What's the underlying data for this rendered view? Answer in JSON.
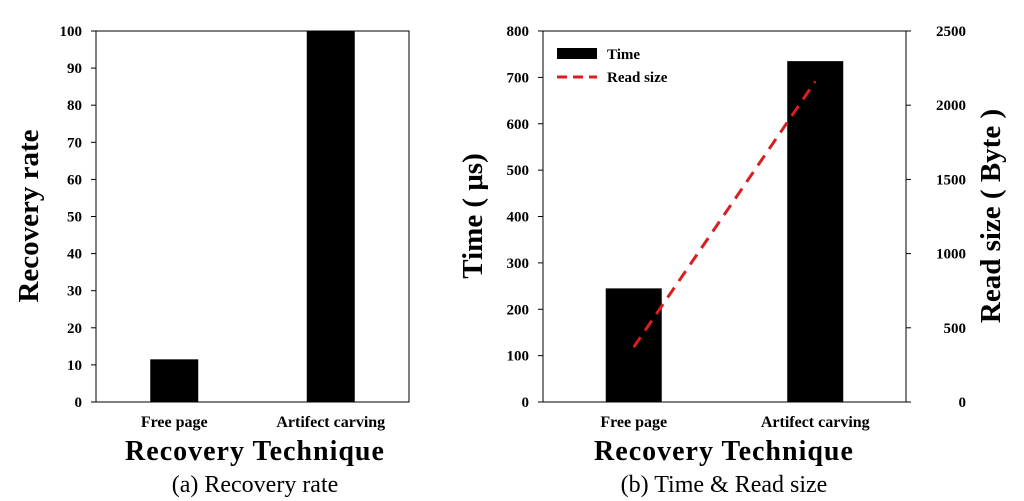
{
  "chart_data": [
    {
      "type": "bar",
      "caption": "(a) Recovery rate",
      "xlabel": "Recovery Technique",
      "ylabel": "Recovery rate",
      "categories": [
        "Free page",
        "Artifect carving"
      ],
      "values": [
        11.5,
        100
      ],
      "ylim": [
        0,
        100
      ],
      "yticks": [
        "0",
        "10",
        "20",
        "30",
        "40",
        "50",
        "60",
        "70",
        "80",
        "90",
        "100"
      ],
      "bar_color": "#000000",
      "grid": false
    },
    {
      "type": "bar",
      "caption": "(b) Time & Read size",
      "xlabel": "Recovery Technique",
      "ylabel": "Time ( μs)",
      "y2label": "Read size ( Byte )",
      "categories": [
        "Free page",
        "Artifect carving"
      ],
      "series": [
        {
          "name": "Time",
          "type": "bar",
          "axis": "left",
          "values": [
            245,
            735
          ],
          "color": "#000000"
        },
        {
          "name": "Read size",
          "type": "line",
          "axis": "right",
          "style": "dashed",
          "values": [
            370,
            2160
          ],
          "color": "#d91e1e"
        }
      ],
      "ylim": [
        0,
        800
      ],
      "yticks": [
        "0",
        "100",
        "200",
        "300",
        "400",
        "500",
        "600",
        "700",
        "800"
      ],
      "y2lim": [
        0,
        2500
      ],
      "y2ticks": [
        "0",
        "500",
        "1000",
        "1500",
        "2000",
        "2500"
      ],
      "legend": "top-left",
      "grid": false
    }
  ]
}
